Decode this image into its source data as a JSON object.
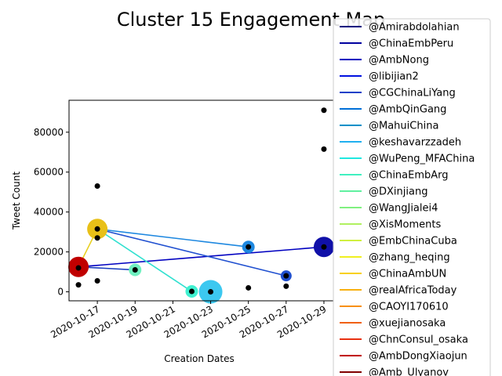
{
  "chart_data": {
    "type": "scatter",
    "title": "Cluster 15 Engagement Map",
    "xlabel": "Creation Dates",
    "ylabel": "Tweet Count",
    "xlim": [
      "2020-10-15T12:00",
      "2020-10-29T12:00"
    ],
    "ylim": [
      -4500,
      96000
    ],
    "x_ticks": [
      "2020-10-17",
      "2020-10-19",
      "2020-10-21",
      "2020-10-23",
      "2020-10-25",
      "2020-10-27",
      "2020-10-29"
    ],
    "y_ticks": [
      0,
      20000,
      40000,
      60000,
      80000
    ],
    "y_tick_labels": [
      "0",
      "20000",
      "40000",
      "60000",
      "80000"
    ],
    "black_points": [
      {
        "x": "2020-10-16",
        "y": 3500
      },
      {
        "x": "2020-10-16",
        "y": 12000
      },
      {
        "x": "2020-10-17",
        "y": 53000
      },
      {
        "x": "2020-10-17",
        "y": 31500
      },
      {
        "x": "2020-10-17",
        "y": 27000
      },
      {
        "x": "2020-10-17",
        "y": 5500
      },
      {
        "x": "2020-10-19",
        "y": 11000
      },
      {
        "x": "2020-10-22",
        "y": 200
      },
      {
        "x": "2020-10-23",
        "y": 0
      },
      {
        "x": "2020-10-25",
        "y": 22500
      },
      {
        "x": "2020-10-25",
        "y": 2000
      },
      {
        "x": "2020-10-27",
        "y": 8000
      },
      {
        "x": "2020-10-27",
        "y": 2800
      },
      {
        "x": "2020-10-29",
        "y": 22500
      },
      {
        "x": "2020-10-29",
        "y": 71500
      },
      {
        "x": "2020-10-29",
        "y": 91000
      }
    ],
    "lines": [
      {
        "color": "#0000c0",
        "points": [
          {
            "x": "2020-10-16",
            "y": 12500
          },
          {
            "x": "2020-10-29",
            "y": 22500
          }
        ]
      },
      {
        "color": "#1a3fc0",
        "points": [
          {
            "x": "2020-10-16",
            "y": 12500
          },
          {
            "x": "2020-10-19",
            "y": 11000
          }
        ]
      },
      {
        "color": "#2050d0",
        "points": [
          {
            "x": "2020-10-17",
            "y": 31500
          },
          {
            "x": "2020-10-27",
            "y": 8000
          }
        ]
      },
      {
        "color": "#1e88e0",
        "points": [
          {
            "x": "2020-10-17",
            "y": 31500
          },
          {
            "x": "2020-10-25",
            "y": 22500
          }
        ]
      },
      {
        "color": "#30e0d0",
        "points": [
          {
            "x": "2020-10-17",
            "y": 31500
          },
          {
            "x": "2020-10-22",
            "y": 200
          }
        ]
      },
      {
        "color": "#e8d020",
        "points": [
          {
            "x": "2020-10-16",
            "y": 12500
          },
          {
            "x": "2020-10-17",
            "y": 31500
          }
        ]
      }
    ],
    "bubbles": [
      {
        "x": "2020-10-29",
        "y": 22500,
        "r": 13,
        "color": "#1010a8"
      },
      {
        "x": "2020-10-27",
        "y": 8000,
        "r": 7,
        "color": "#2050d0"
      },
      {
        "x": "2020-10-25",
        "y": 22500,
        "r": 8,
        "color": "#1e88e0"
      },
      {
        "x": "2020-10-23",
        "y": 0,
        "r": 15,
        "color": "#3cc8f0"
      },
      {
        "x": "2020-10-22",
        "y": 200,
        "r": 8,
        "color": "#40f0d0"
      },
      {
        "x": "2020-10-19",
        "y": 11000,
        "r": 8,
        "color": "#70f0c0"
      },
      {
        "x": "2020-10-17",
        "y": 31500,
        "r": 13,
        "color": "#e8c018"
      },
      {
        "x": "2020-10-16",
        "y": 12500,
        "r": 13,
        "color": "#c00000"
      }
    ],
    "legend_position": "right",
    "legend": [
      {
        "name": "@Amirabdolahian",
        "color": "#00007f"
      },
      {
        "name": "@ChinaEmbPeru",
        "color": "#00009f"
      },
      {
        "name": "@AmbNong",
        "color": "#0000c0"
      },
      {
        "name": "@libijian2",
        "color": "#0010e0"
      },
      {
        "name": "@CGChinaLiYang",
        "color": "#0a40c8"
      },
      {
        "name": "@AmbQinGang",
        "color": "#0070d8"
      },
      {
        "name": "@MahuiChina",
        "color": "#0090c8"
      },
      {
        "name": "@keshavarzzadeh",
        "color": "#20b0f0"
      },
      {
        "name": "@WuPeng_MFAChina",
        "color": "#20e8e0"
      },
      {
        "name": "@ChinaEmbArg",
        "color": "#40f0c0"
      },
      {
        "name": "@DXinjiang",
        "color": "#60f0a0"
      },
      {
        "name": "@WangJialei4",
        "color": "#80f080"
      },
      {
        "name": "@XisMoments",
        "color": "#b0f060"
      },
      {
        "name": "@EmbChinaCuba",
        "color": "#d0f040"
      },
      {
        "name": "@zhang_heqing",
        "color": "#f0f020"
      },
      {
        "name": "@ChinaAmbUN",
        "color": "#f8d010"
      },
      {
        "name": "@realAfricaToday",
        "color": "#f8b010"
      },
      {
        "name": "@CAOYI170610",
        "color": "#f89010"
      },
      {
        "name": "@xuejianosaka",
        "color": "#f06010"
      },
      {
        "name": "@ChnConsul_osaka",
        "color": "#e83010"
      },
      {
        "name": "@AmbDongXiaojun",
        "color": "#c00000"
      },
      {
        "name": "@Amb_Ulyanov",
        "color": "#800000"
      }
    ]
  }
}
